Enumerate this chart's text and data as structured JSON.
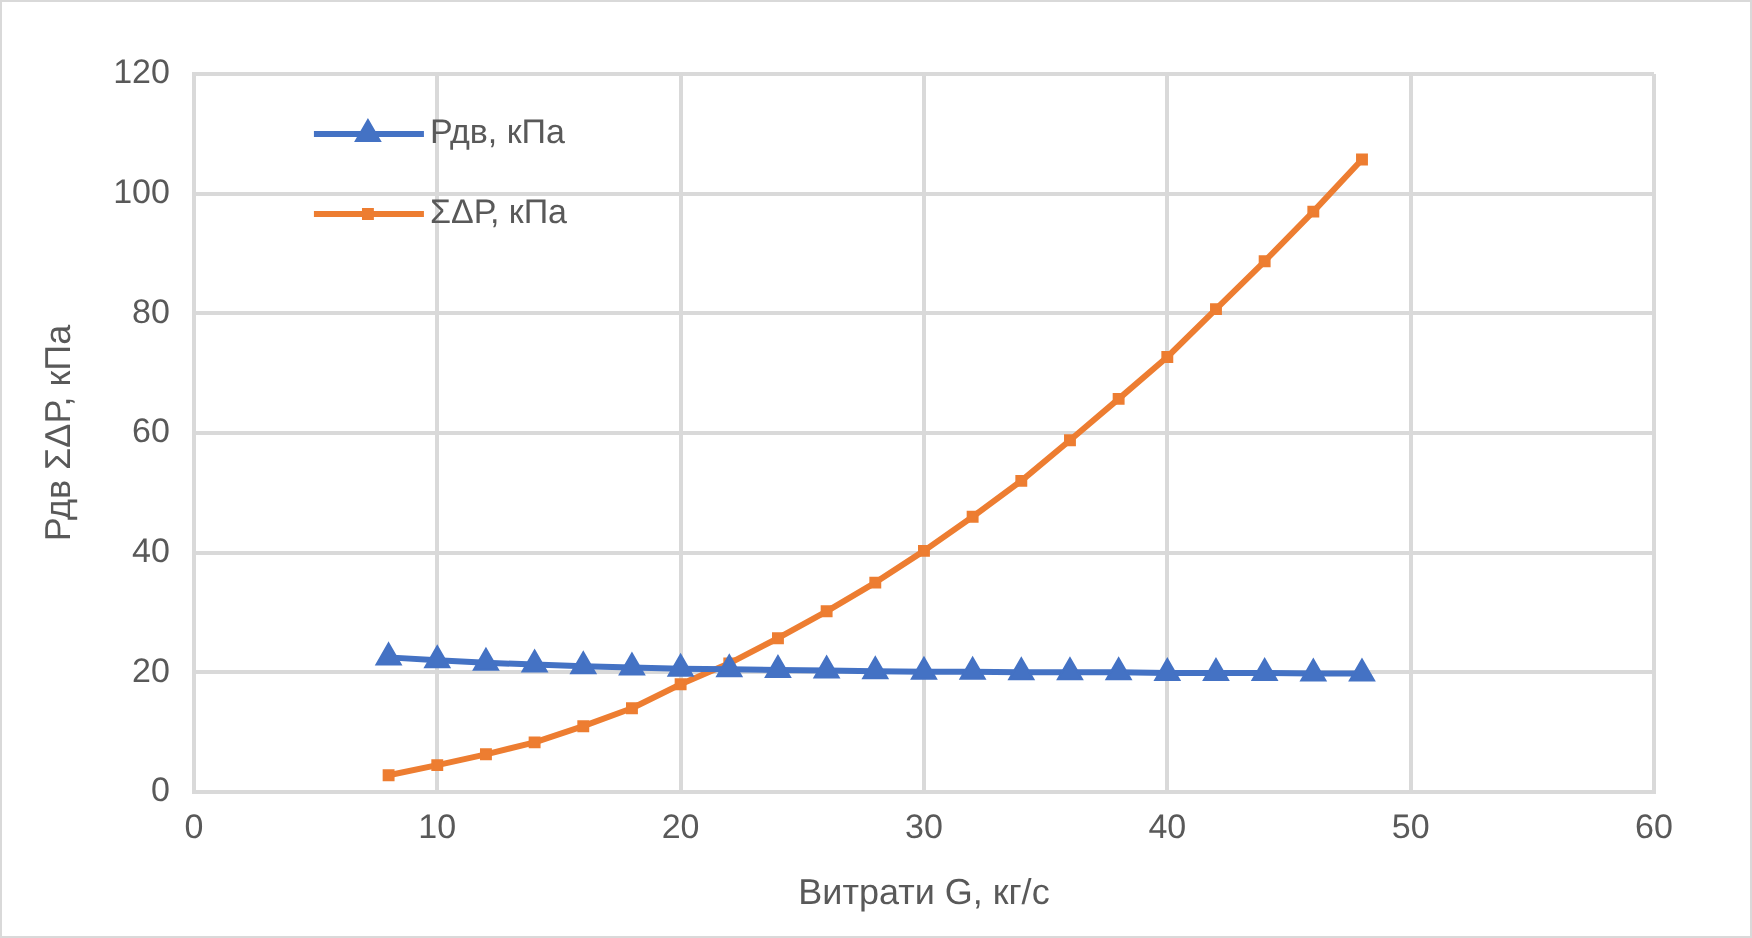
{
  "chart_data": {
    "type": "line",
    "xlabel": "Витрати G, кг/с",
    "ylabel": "Рдв ΣΔР, кПа",
    "x": [
      8,
      10,
      12,
      14,
      16,
      18,
      20,
      22,
      24,
      26,
      28,
      30,
      32,
      34,
      36,
      38,
      40,
      42,
      44,
      46,
      48
    ],
    "series": [
      {
        "name": "Рдв, кПа",
        "color": "#4472c4",
        "marker": "triangle",
        "values": [
          22.5,
          22,
          21.6,
          21.3,
          21,
          20.8,
          20.6,
          20.5,
          20.4,
          20.3,
          20.2,
          20.1,
          20.1,
          20,
          20,
          20,
          19.9,
          19.9,
          19.9,
          19.8,
          19.8
        ]
      },
      {
        "name": "ΣΔР, кПа",
        "color": "#ed7d31",
        "marker": "square",
        "values": [
          2.8,
          4.5,
          6.3,
          8.3,
          11,
          14,
          18,
          21.5,
          25.7,
          30.2,
          35,
          40.3,
          46,
          52,
          58.8,
          65.7,
          72.7,
          80.7,
          88.7,
          97,
          105.7
        ]
      }
    ],
    "xlim": [
      0,
      60
    ],
    "xticks": [
      0,
      10,
      20,
      30,
      40,
      50,
      60
    ],
    "ylim": [
      0,
      120
    ],
    "yticks": [
      0,
      20,
      40,
      60,
      80,
      100,
      120
    ],
    "grid": true,
    "legend": "top left",
    "line_style": "solid"
  }
}
